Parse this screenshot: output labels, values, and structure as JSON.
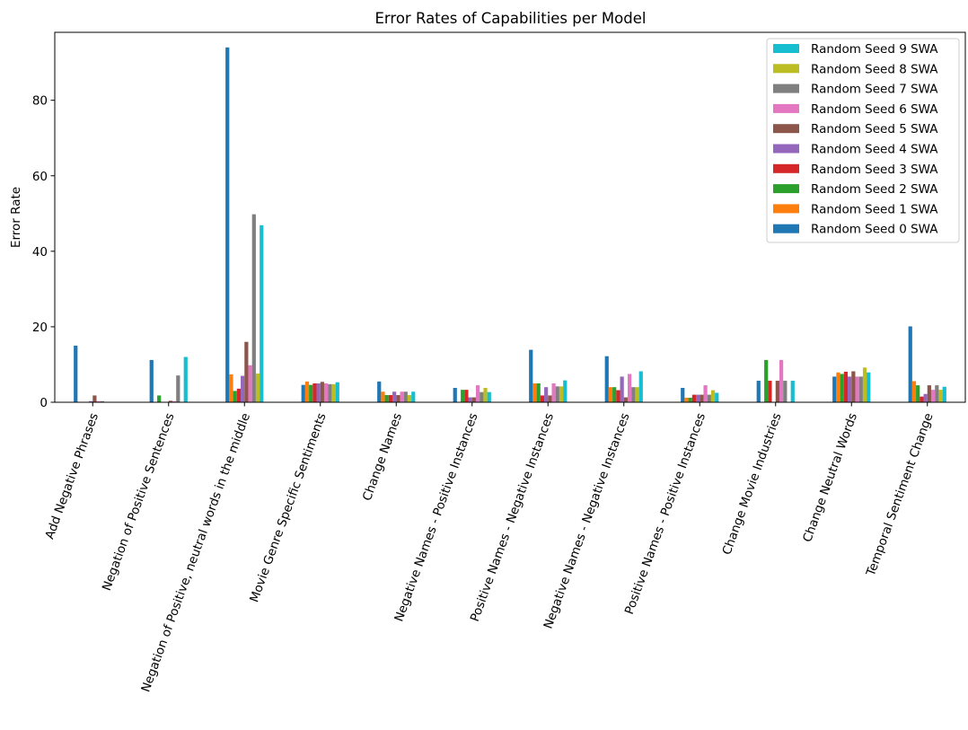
{
  "chart_data": {
    "type": "bar",
    "title": "Error Rates of Capabilities per Model",
    "xlabel": "",
    "ylabel": "Error Rate",
    "ylim": [
      0,
      98
    ],
    "yticks": [
      0,
      20,
      40,
      60,
      80
    ],
    "grid": false,
    "legend_position": "top-right",
    "categories": [
      "Add Negative Phrases",
      "Negation of Positive Sentences",
      "Negation of Positive, neutral words in the middle",
      "Movie Genre Specific Sentiments",
      "Change Names",
      "Negative Names - Positive Instances",
      "Positive Names - Negative Instances",
      "Negative Names - Negative Instances",
      "Positive Names - Positive Instances",
      "Change Movie Industries",
      "Change Neutral Words",
      "Temporal Sentiment Change"
    ],
    "series": [
      {
        "name": "Random Seed 0 SWA",
        "color": "#1f77b4",
        "values": [
          15.0,
          11.2,
          94.0,
          4.6,
          5.5,
          3.8,
          13.9,
          12.2,
          3.8,
          5.7,
          6.8,
          20.1
        ]
      },
      {
        "name": "Random Seed 1 SWA",
        "color": "#ff7f0e",
        "values": [
          0.0,
          0.0,
          7.4,
          5.5,
          2.8,
          0.0,
          5.0,
          4.0,
          1.2,
          0.0,
          7.9,
          5.6
        ]
      },
      {
        "name": "Random Seed 2 SWA",
        "color": "#2ca02c",
        "values": [
          0.0,
          1.8,
          3.0,
          4.6,
          1.9,
          3.3,
          5.0,
          4.0,
          1.2,
          11.2,
          7.5,
          4.5
        ]
      },
      {
        "name": "Random Seed 3 SWA",
        "color": "#d62728",
        "values": [
          0.0,
          0.0,
          3.6,
          5.0,
          1.9,
          3.3,
          1.8,
          3.2,
          2.0,
          5.7,
          8.1,
          1.5
        ]
      },
      {
        "name": "Random Seed 4 SWA",
        "color": "#9467bd",
        "values": [
          0.3,
          0.0,
          7.0,
          5.0,
          2.8,
          1.3,
          4.0,
          6.8,
          2.0,
          0.0,
          6.8,
          2.2
        ]
      },
      {
        "name": "Random Seed 5 SWA",
        "color": "#8c564b",
        "values": [
          1.8,
          0.4,
          16.0,
          5.4,
          1.9,
          1.3,
          1.8,
          1.3,
          2.0,
          5.7,
          8.2,
          4.5
        ]
      },
      {
        "name": "Random Seed 6 SWA",
        "color": "#e377c2",
        "values": [
          0.3,
          0.3,
          9.8,
          5.0,
          2.8,
          4.5,
          5.0,
          7.5,
          4.5,
          11.2,
          6.8,
          3.3
        ]
      },
      {
        "name": "Random Seed 7 SWA",
        "color": "#7f7f7f",
        "values": [
          0.3,
          7.1,
          49.8,
          4.8,
          2.8,
          2.7,
          4.2,
          4.0,
          2.0,
          5.7,
          6.8,
          4.5
        ]
      },
      {
        "name": "Random Seed 8 SWA",
        "color": "#bcbd22",
        "values": [
          0.0,
          0.0,
          7.6,
          4.8,
          1.9,
          3.8,
          4.2,
          4.0,
          3.2,
          0.0,
          9.2,
          3.3
        ]
      },
      {
        "name": "Random Seed 9 SWA",
        "color": "#17becf",
        "values": [
          0.0,
          12.0,
          46.9,
          5.3,
          2.8,
          2.7,
          5.8,
          8.2,
          2.5,
          5.7,
          7.9,
          4.1
        ]
      }
    ]
  }
}
